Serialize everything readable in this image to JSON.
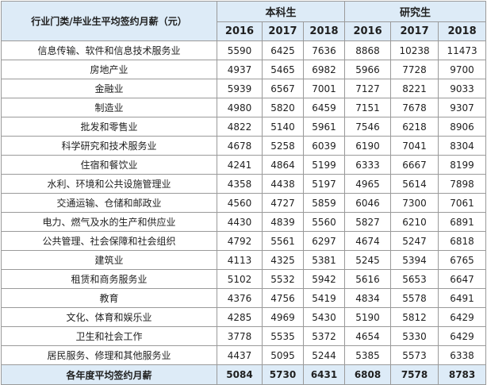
{
  "table": {
    "corner_label": "行业门类/毕业生平均签约月薪（元）",
    "groups": [
      "本科生",
      "研究生"
    ],
    "years": [
      "2016",
      "2017",
      "2018",
      "2016",
      "2017",
      "2018"
    ],
    "rows": [
      {
        "industry": "信息传输、软件和信息技术服务业",
        "values": [
          "5590",
          "6425",
          "7636",
          "8868",
          "10238",
          "11473"
        ]
      },
      {
        "industry": "房地产业",
        "values": [
          "4937",
          "5465",
          "6982",
          "5966",
          "7728",
          "9700"
        ]
      },
      {
        "industry": "金融业",
        "values": [
          "5939",
          "6567",
          "7001",
          "7127",
          "8221",
          "9033"
        ]
      },
      {
        "industry": "制造业",
        "values": [
          "4980",
          "5820",
          "6459",
          "7151",
          "7678",
          "9307"
        ]
      },
      {
        "industry": "批发和零售业",
        "values": [
          "4822",
          "5140",
          "5961",
          "7546",
          "6218",
          "8906"
        ]
      },
      {
        "industry": "科学研究和技术服务业",
        "values": [
          "4678",
          "5258",
          "6039",
          "6190",
          "7041",
          "8304"
        ]
      },
      {
        "industry": "住宿和餐饮业",
        "values": [
          "4241",
          "4864",
          "5199",
          "6333",
          "6667",
          "8199"
        ]
      },
      {
        "industry": "水利、环境和公共设施管理业",
        "values": [
          "4358",
          "4438",
          "5197",
          "4965",
          "5614",
          "7898"
        ]
      },
      {
        "industry": "交通运输、仓储和邮政业",
        "values": [
          "4560",
          "4727",
          "5859",
          "6046",
          "7300",
          "7061"
        ]
      },
      {
        "industry": "电力、燃气及水的生产和供应业",
        "values": [
          "4430",
          "4839",
          "5560",
          "5827",
          "6210",
          "6891"
        ]
      },
      {
        "industry": "公共管理、社会保障和社会组织",
        "values": [
          "4792",
          "5561",
          "6297",
          "4674",
          "5247",
          "6818"
        ]
      },
      {
        "industry": "建筑业",
        "values": [
          "4113",
          "4325",
          "5381",
          "5245",
          "5394",
          "6765"
        ]
      },
      {
        "industry": "租赁和商务服务业",
        "values": [
          "5102",
          "5532",
          "5942",
          "5616",
          "5653",
          "6647"
        ]
      },
      {
        "industry": "教育",
        "values": [
          "4376",
          "4756",
          "5419",
          "4834",
          "5578",
          "6491"
        ]
      },
      {
        "industry": "文化、体育和娱乐业",
        "values": [
          "4285",
          "4969",
          "5430",
          "5190",
          "5812",
          "6429"
        ]
      },
      {
        "industry": "卫生和社会工作",
        "values": [
          "3778",
          "5535",
          "5372",
          "4654",
          "5330",
          "6429"
        ]
      },
      {
        "industry": "居民服务、修理和其他服务业",
        "values": [
          "4437",
          "5095",
          "5244",
          "5385",
          "5573",
          "6338"
        ]
      }
    ],
    "footer": {
      "label": "各年度平均签约月薪",
      "values": [
        "5084",
        "5730",
        "6431",
        "6808",
        "7578",
        "8783"
      ]
    }
  },
  "colors": {
    "header_bg": "#ddebf7",
    "border": "#9a9a9a"
  }
}
